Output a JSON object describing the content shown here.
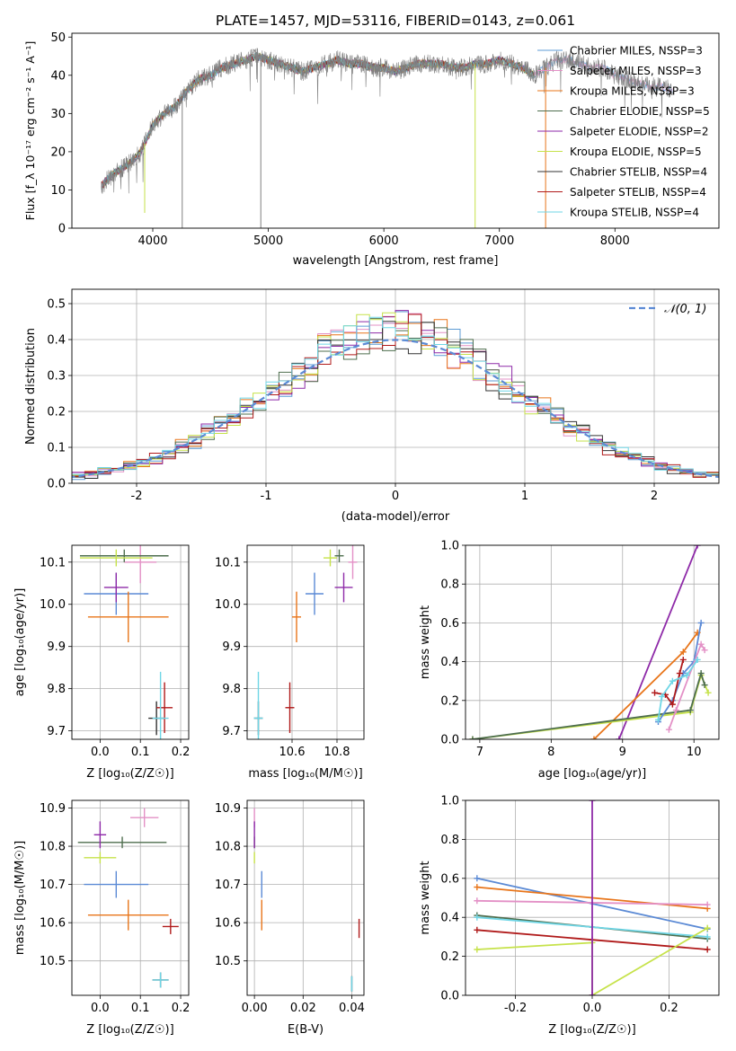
{
  "chart_data": [
    {
      "type": "line",
      "title": "PLATE=1457, MJD=53116, FIBERID=0143, z=0.061",
      "xlabel": "wavelength [Angstrom, rest frame]",
      "ylabel": "Flux [f_λ 10⁻¹⁷ erg cm⁻² s⁻¹ A⁻¹]",
      "xlim": [
        3300,
        8900
      ],
      "ylim": [
        0,
        51
      ],
      "xticks": [
        4000,
        5000,
        6000,
        7000,
        8000
      ],
      "yticks": [
        0,
        10,
        20,
        30,
        40,
        50
      ],
      "legend_position": "top-right",
      "series": [
        {
          "name": "Chabrier MILES, N_SSP=3",
          "color": "#5c9bd5"
        },
        {
          "name": "Salpeter MILES, N_SSP=3",
          "color": "#e390c6"
        },
        {
          "name": "Kroupa MILES, N_SSP=3",
          "color": "#e8751a"
        },
        {
          "name": "Chabrier ELODIE, N_SSP=5",
          "color": "#4e6e4e"
        },
        {
          "name": "Salpeter ELODIE, N_SSP=2",
          "color": "#8e2aa8"
        },
        {
          "name": "Kroupa ELODIE, N_SSP=5",
          "color": "#c6e24a"
        },
        {
          "name": "Chabrier STELIB, N_SSP=4",
          "color": "#333333"
        },
        {
          "name": "Salpeter STELIB, N_SSP=4",
          "color": "#b01a1a"
        },
        {
          "name": "Kroupa STELIB, N_SSP=4",
          "color": "#6fd6e6"
        }
      ],
      "data_color": "#808080",
      "continuum_x": [
        3550,
        3650,
        3800,
        3900,
        4000,
        4100,
        4200,
        4300,
        4400,
        4500,
        4600,
        4700,
        4800,
        4900,
        5000,
        5100,
        5200,
        5300,
        5400,
        5500,
        5600,
        5700,
        5800,
        5900,
        6000,
        6100,
        6200,
        6300,
        6400,
        6500,
        6600,
        6700,
        6800,
        6900,
        7000,
        7100,
        7200,
        7300,
        7400,
        7500,
        7600,
        7700,
        7800,
        7900,
        8000,
        8100,
        8200,
        8300,
        8400,
        8500
      ],
      "continuum_y": [
        11,
        14,
        17,
        20,
        27,
        30,
        32,
        36,
        39,
        40,
        42,
        43,
        44,
        45,
        44,
        43,
        42,
        41,
        42,
        43,
        44,
        43,
        43,
        42,
        42,
        41,
        42,
        43,
        43,
        43,
        42,
        42,
        43,
        43,
        44,
        43,
        42,
        40,
        42,
        44,
        44,
        43,
        42,
        42,
        40,
        39,
        38,
        37,
        37,
        36
      ]
    },
    {
      "type": "bar",
      "xlabel": "(data-model)/error",
      "ylabel": "Normed distribution",
      "xlim": [
        -2.5,
        2.5
      ],
      "ylim": [
        0,
        0.54
      ],
      "xticks": [
        -2,
        -1,
        0,
        1,
        2
      ],
      "yticks": [
        0.0,
        0.1,
        0.2,
        0.3,
        0.4,
        0.5
      ],
      "grid": true,
      "legend_position": "top-right",
      "reference_curve": {
        "name": "𝒩(0, 1)",
        "color": "#5b8ad5",
        "mu": 0,
        "sigma": 1
      }
    },
    {
      "type": "scatter",
      "xlabel": "Z [log₁₀(Z/Z☉)]",
      "ylabel": "age  [log₁₀(age/yr)]",
      "xlim": [
        -0.07,
        0.22
      ],
      "ylim": [
        9.68,
        10.14
      ],
      "xticks": [
        0.0,
        0.1,
        0.2
      ],
      "yticks": [
        9.7,
        9.8,
        9.9,
        10.0,
        10.1
      ],
      "grid": true,
      "points": [
        {
          "x": 0.04,
          "y": 10.025,
          "xerr": 0.08,
          "yerr": 0.05,
          "color": "#5b8ad5"
        },
        {
          "x": 0.1,
          "y": 10.1,
          "xerr": 0.04,
          "yerr": 0.05,
          "color": "#e390c6"
        },
        {
          "x": 0.07,
          "y": 9.97,
          "xerr": 0.1,
          "yerr": 0.06,
          "color": "#e8751a"
        },
        {
          "x": 0.06,
          "y": 10.115,
          "xerr": 0.11,
          "yerr": 0.015,
          "color": "#4e6e4e"
        },
        {
          "x": 0.04,
          "y": 10.04,
          "xerr": 0.03,
          "yerr": 0.035,
          "color": "#8e2aa8"
        },
        {
          "x": 0.04,
          "y": 10.11,
          "xerr": 0.09,
          "yerr": 0.02,
          "color": "#c6e24a"
        },
        {
          "x": 0.14,
          "y": 9.73,
          "xerr": 0.02,
          "yerr": 0.04,
          "color": "#333333"
        },
        {
          "x": 0.16,
          "y": 9.755,
          "xerr": 0.02,
          "yerr": 0.06,
          "color": "#b01a1a"
        },
        {
          "x": 0.15,
          "y": 9.73,
          "xerr": 0.02,
          "yerr": 0.11,
          "color": "#6fd6e6"
        }
      ]
    },
    {
      "type": "scatter",
      "xlabel": "mass [log₁₀(M/M☉)]",
      "ylim": [
        9.68,
        10.14
      ],
      "xlim": [
        10.4,
        10.92
      ],
      "xticks": [
        10.6,
        10.8
      ],
      "yticks": [
        9.7,
        9.8,
        9.9,
        10.0,
        10.1
      ],
      "grid": true,
      "points": [
        {
          "x": 10.7,
          "y": 10.025,
          "xerr": 0.04,
          "yerr": 0.05,
          "color": "#5b8ad5"
        },
        {
          "x": 10.87,
          "y": 10.1,
          "xerr": 0.02,
          "yerr": 0.04,
          "color": "#e390c6"
        },
        {
          "x": 10.62,
          "y": 9.97,
          "xerr": 0.02,
          "yerr": 0.06,
          "color": "#e8751a"
        },
        {
          "x": 10.81,
          "y": 10.115,
          "xerr": 0.02,
          "yerr": 0.015,
          "color": "#4e6e4e"
        },
        {
          "x": 10.83,
          "y": 10.04,
          "xerr": 0.04,
          "yerr": 0.035,
          "color": "#8e2aa8"
        },
        {
          "x": 10.77,
          "y": 10.11,
          "xerr": 0.03,
          "yerr": 0.02,
          "color": "#c6e24a"
        },
        {
          "x": 10.45,
          "y": 9.73,
          "xerr": 0.02,
          "yerr": 0.04,
          "color": "#333333"
        },
        {
          "x": 10.59,
          "y": 9.755,
          "xerr": 0.02,
          "yerr": 0.06,
          "color": "#b01a1a"
        },
        {
          "x": 10.45,
          "y": 9.73,
          "xerr": 0.02,
          "yerr": 0.11,
          "color": "#6fd6e6"
        }
      ]
    },
    {
      "type": "line",
      "xlabel": "age  [log₁₀(age/yr)]",
      "ylabel": "mass weight",
      "xlim": [
        6.8,
        10.35
      ],
      "ylim": [
        0,
        1.0
      ],
      "xticks": [
        7,
        8,
        9,
        10
      ],
      "yticks": [
        0.0,
        0.2,
        0.4,
        0.6,
        0.8,
        1.0
      ],
      "grid": true,
      "series": [
        {
          "color": "#8e2aa8",
          "x": [
            8.95,
            10.05
          ],
          "y": [
            0.0,
            1.0
          ]
        },
        {
          "color": "#e8751a",
          "x": [
            8.6,
            9.85,
            10.05
          ],
          "y": [
            0.0,
            0.45,
            0.55
          ]
        },
        {
          "color": "#c6e24a",
          "x": [
            6.9,
            9.95,
            10.1,
            10.2
          ],
          "y": [
            0.0,
            0.14,
            0.33,
            0.24
          ]
        },
        {
          "color": "#4e6e4e",
          "x": [
            6.9,
            9.95,
            10.1,
            10.15
          ],
          "y": [
            0.0,
            0.15,
            0.34,
            0.28
          ]
        },
        {
          "color": "#5b8ad5",
          "x": [
            9.5,
            9.7,
            9.85,
            10.0,
            10.1
          ],
          "y": [
            0.09,
            0.2,
            0.34,
            0.4,
            0.6
          ]
        },
        {
          "color": "#e390c6",
          "x": [
            9.65,
            9.75,
            10.1,
            10.15
          ],
          "y": [
            0.05,
            0.15,
            0.49,
            0.46
          ]
        },
        {
          "color": "#b01a1a",
          "x": [
            9.45,
            9.6,
            9.7,
            9.8,
            9.85
          ],
          "y": [
            0.24,
            0.23,
            0.18,
            0.34,
            0.41
          ]
        },
        {
          "color": "#6fd6e6",
          "x": [
            9.5,
            9.55,
            9.7,
            9.9,
            10.05
          ],
          "y": [
            0.1,
            0.22,
            0.3,
            0.33,
            0.41
          ]
        }
      ]
    },
    {
      "type": "scatter",
      "xlabel": "Z [log₁₀(Z/Z☉)]",
      "ylabel": "mass [log₁₀(M/M☉)]",
      "xlim": [
        -0.07,
        0.22
      ],
      "ylim": [
        10.41,
        10.92
      ],
      "xticks": [
        0.0,
        0.1,
        0.2
      ],
      "yticks": [
        10.5,
        10.6,
        10.7,
        10.8,
        10.9
      ],
      "grid": true,
      "points": [
        {
          "x": 0.04,
          "y": 10.7,
          "xerr": 0.08,
          "yerr": 0.035,
          "color": "#5b8ad5"
        },
        {
          "x": 0.11,
          "y": 10.875,
          "xerr": 0.035,
          "yerr": 0.025,
          "color": "#e390c6"
        },
        {
          "x": 0.07,
          "y": 10.62,
          "xerr": 0.1,
          "yerr": 0.04,
          "color": "#e8751a"
        },
        {
          "x": 0.055,
          "y": 10.81,
          "xerr": 0.11,
          "yerr": 0.015,
          "color": "#4e6e4e"
        },
        {
          "x": 0.0,
          "y": 10.83,
          "xerr": 0.015,
          "yerr": 0.035,
          "color": "#8e2aa8"
        },
        {
          "x": 0.0,
          "y": 10.77,
          "xerr": 0.04,
          "yerr": 0.015,
          "color": "#c6e24a"
        },
        {
          "x": 0.15,
          "y": 10.45,
          "xerr": 0.02,
          "yerr": 0.02,
          "color": "#333333"
        },
        {
          "x": 0.175,
          "y": 10.59,
          "xerr": 0.02,
          "yerr": 0.02,
          "color": "#b01a1a"
        },
        {
          "x": 0.15,
          "y": 10.45,
          "xerr": 0.02,
          "yerr": 0.02,
          "color": "#6fd6e6"
        }
      ]
    },
    {
      "type": "scatter",
      "xlabel": "E(B-V)",
      "xlim": [
        -0.003,
        0.045
      ],
      "ylim": [
        10.41,
        10.92
      ],
      "xticks": [
        0.0,
        0.02,
        0.04
      ],
      "yticks": [
        10.5,
        10.6,
        10.7,
        10.8,
        10.9
      ],
      "grid": true,
      "points": [
        {
          "x": 0.003,
          "y": 10.7,
          "yerr": 0.035,
          "color": "#5b8ad5"
        },
        {
          "x": 0.0,
          "y": 10.875,
          "yerr": 0.025,
          "color": "#e390c6"
        },
        {
          "x": 0.003,
          "y": 10.62,
          "yerr": 0.04,
          "color": "#e8751a"
        },
        {
          "x": 0.0,
          "y": 10.81,
          "yerr": 0.015,
          "color": "#4e6e4e"
        },
        {
          "x": 0.0,
          "y": 10.83,
          "yerr": 0.035,
          "color": "#8e2aa8"
        },
        {
          "x": 0.0,
          "y": 10.77,
          "yerr": 0.015,
          "color": "#c6e24a"
        },
        {
          "x": 0.04,
          "y": 10.44,
          "yerr": 0.02,
          "color": "#333333"
        },
        {
          "x": 0.043,
          "y": 10.585,
          "yerr": 0.025,
          "color": "#b01a1a"
        },
        {
          "x": 0.04,
          "y": 10.44,
          "yerr": 0.02,
          "color": "#6fd6e6"
        }
      ]
    },
    {
      "type": "line",
      "xlabel": "Z [log₁₀(Z/Z☉)]",
      "ylabel": "mass weight",
      "xlim": [
        -0.33,
        0.33
      ],
      "ylim": [
        0,
        1.0
      ],
      "xticks": [
        -0.2,
        0.0,
        0.2
      ],
      "yticks": [
        0.0,
        0.2,
        0.4,
        0.6,
        0.8,
        1.0
      ],
      "grid": true,
      "series": [
        {
          "color": "#5b8ad5",
          "x": [
            -0.3,
            0.3
          ],
          "y": [
            0.6,
            0.34
          ]
        },
        {
          "color": "#e8751a",
          "x": [
            -0.3,
            0.3
          ],
          "y": [
            0.555,
            0.445
          ]
        },
        {
          "color": "#e390c6",
          "x": [
            -0.3,
            0.3
          ],
          "y": [
            0.485,
            0.465
          ]
        },
        {
          "color": "#4e6e4e",
          "x": [
            -0.3,
            0.0,
            0.3
          ],
          "y": [
            0.41,
            0.35,
            0.29
          ]
        },
        {
          "color": "#6fd6e6",
          "x": [
            -0.3,
            0.3
          ],
          "y": [
            0.4,
            0.3
          ]
        },
        {
          "color": "#b01a1a",
          "x": [
            -0.3,
            0.0,
            0.3
          ],
          "y": [
            0.335,
            0.285,
            0.235
          ]
        },
        {
          "color": "#c6e24a",
          "x": [
            -0.3,
            0.0,
            0.0,
            0.3
          ],
          "y": [
            0.235,
            0.27,
            0.0,
            0.345
          ]
        },
        {
          "color": "#8e2aa8",
          "x": [
            0.0,
            0.0
          ],
          "y": [
            0.0,
            1.0
          ]
        }
      ]
    }
  ]
}
